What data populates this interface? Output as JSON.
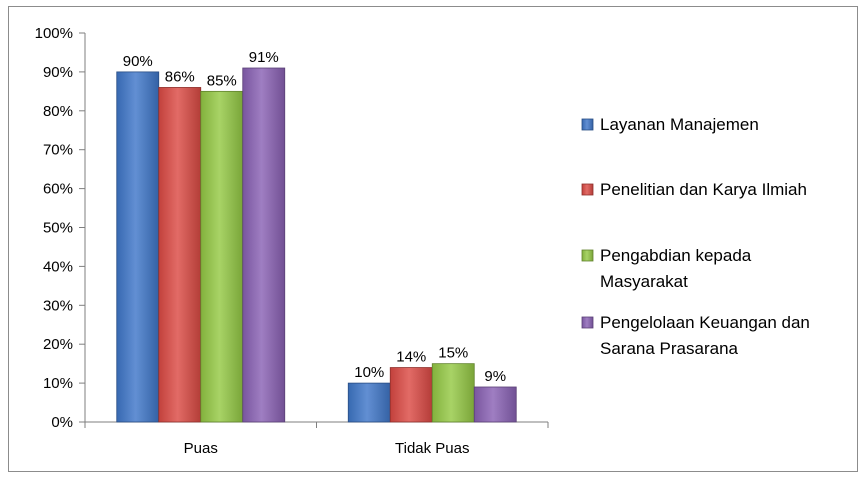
{
  "chart_data": {
    "type": "bar",
    "categories": [
      "Puas",
      "Tidak Puas"
    ],
    "series": [
      {
        "name": "Layanan Manajemen",
        "values": [
          90,
          10
        ],
        "labels": [
          "90%",
          "10%"
        ]
      },
      {
        "name": "Penelitian dan Karya Ilmiah",
        "values": [
          86,
          14
        ],
        "labels": [
          "86%",
          "14%"
        ]
      },
      {
        "name": "Pengabdian kepada Masyarakat",
        "values": [
          85,
          15
        ],
        "labels": [
          "85%",
          "15%"
        ]
      },
      {
        "name": "Pengelolaan Keuangan dan Sarana Prasarana",
        "values": [
          91,
          9
        ],
        "labels": [
          "91%",
          "9%"
        ]
      }
    ],
    "legend_lines": [
      [
        "Layanan Manajemen"
      ],
      [
        "Penelitian dan Karya Ilmiah"
      ],
      [
        "Pengabdian kepada",
        "Masyarakat"
      ],
      [
        "Pengelolaan Keuangan dan",
        "Sarana Prasarana"
      ]
    ],
    "colors": [
      "#3f77c9",
      "#dc4a44",
      "#95c945",
      "#8a62b5"
    ],
    "ylim": [
      0,
      100
    ],
    "yticks": [
      "0%",
      "10%",
      "20%",
      "30%",
      "40%",
      "50%",
      "60%",
      "70%",
      "80%",
      "90%",
      "100%"
    ],
    "grid": false,
    "legend_position": "right",
    "title": "",
    "xlabel": "",
    "ylabel": ""
  }
}
